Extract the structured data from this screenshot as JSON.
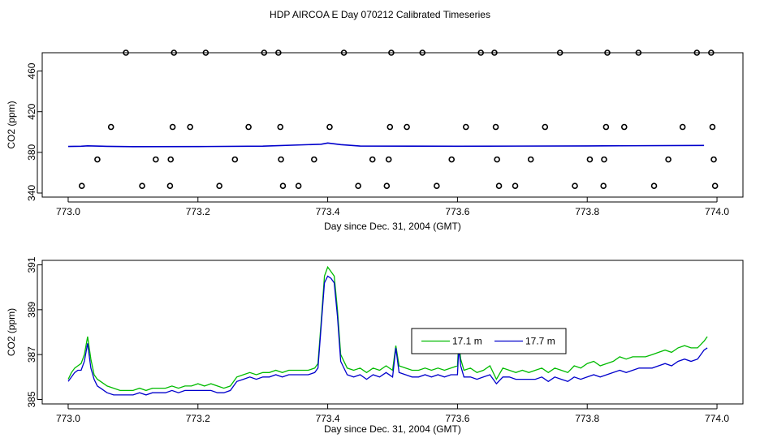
{
  "title": "HDP AIRCOA E  Day 070212  Calibrated Timeseries",
  "chart_data": [
    {
      "type": "scatter",
      "xlabel": "Day since Dec. 31, 2004 (GMT)",
      "ylabel": "CO2 (ppm)",
      "xlim": [
        772.96,
        774.04
      ],
      "ylim": [
        336,
        478
      ],
      "xticks": [
        "773.0",
        "773.2",
        "773.4",
        "773.6",
        "773.8",
        "774.0"
      ],
      "yticks": [
        "340",
        "380",
        "420",
        "460"
      ],
      "xtick_values": [
        773.0,
        773.2,
        773.4,
        773.6,
        773.8,
        774.0
      ],
      "ytick_values": [
        340,
        380,
        420,
        460
      ],
      "points": [
        [
          773.021,
          347
        ],
        [
          773.045,
          373
        ],
        [
          773.066,
          405
        ],
        [
          773.089,
          478
        ],
        [
          773.114,
          347
        ],
        [
          773.135,
          373
        ],
        [
          773.157,
          347
        ],
        [
          773.158,
          373
        ],
        [
          773.161,
          405
        ],
        [
          773.163,
          478
        ],
        [
          773.188,
          405
        ],
        [
          773.212,
          478
        ],
        [
          773.233,
          347
        ],
        [
          773.257,
          373
        ],
        [
          773.278,
          405
        ],
        [
          773.302,
          478
        ],
        [
          773.324,
          478
        ],
        [
          773.327,
          405
        ],
        [
          773.328,
          373
        ],
        [
          773.331,
          347
        ],
        [
          773.355,
          347
        ],
        [
          773.379,
          373
        ],
        [
          773.403,
          405
        ],
        [
          773.425,
          478
        ],
        [
          773.447,
          347
        ],
        [
          773.469,
          373
        ],
        [
          773.491,
          347
        ],
        [
          773.494,
          373
        ],
        [
          773.496,
          405
        ],
        [
          773.498,
          478
        ],
        [
          773.522,
          405
        ],
        [
          773.546,
          478
        ],
        [
          773.568,
          347
        ],
        [
          773.591,
          373
        ],
        [
          773.613,
          405
        ],
        [
          773.636,
          478
        ],
        [
          773.657,
          478
        ],
        [
          773.659,
          405
        ],
        [
          773.661,
          373
        ],
        [
          773.664,
          347
        ],
        [
          773.689,
          347
        ],
        [
          773.713,
          373
        ],
        [
          773.735,
          405
        ],
        [
          773.758,
          478
        ],
        [
          773.781,
          347
        ],
        [
          773.804,
          373
        ],
        [
          773.825,
          347
        ],
        [
          773.826,
          373
        ],
        [
          773.829,
          405
        ],
        [
          773.831,
          478
        ],
        [
          773.857,
          405
        ],
        [
          773.879,
          478
        ],
        [
          773.903,
          347
        ],
        [
          773.925,
          373
        ],
        [
          773.947,
          405
        ],
        [
          773.969,
          478
        ],
        [
          773.991,
          478
        ],
        [
          773.993,
          405
        ],
        [
          773.995,
          373
        ],
        [
          773.997,
          347
        ]
      ],
      "line_series": {
        "color": "#0000cc",
        "x": [
          773.0,
          773.02,
          773.03,
          773.06,
          773.1,
          773.2,
          773.3,
          773.39,
          773.4,
          773.42,
          773.45,
          773.6,
          773.8,
          773.98
        ],
        "y": [
          385.8,
          386.0,
          386.4,
          385.9,
          385.6,
          385.7,
          386.1,
          388.0,
          389.2,
          387.6,
          386.2,
          386.0,
          386.3,
          386.8
        ]
      }
    },
    {
      "type": "line",
      "xlabel": "Day since Dec. 31, 2004 (GMT)",
      "ylabel": "CO2 (ppm)",
      "xlim": [
        772.96,
        774.04
      ],
      "ylim": [
        384.8,
        391.2
      ],
      "xticks": [
        "773.0",
        "773.2",
        "773.4",
        "773.6",
        "773.8",
        "774.0"
      ],
      "yticks": [
        "385",
        "387",
        "389",
        "391"
      ],
      "xtick_values": [
        773.0,
        773.2,
        773.4,
        773.6,
        773.8,
        774.0
      ],
      "ytick_values": [
        385,
        387,
        389,
        391
      ],
      "legend": "center-right",
      "series": [
        {
          "name": "17.1 m",
          "color": "#00bb00",
          "x": [
            773.0,
            773.005,
            773.01,
            773.015,
            773.02,
            773.025,
            773.03,
            773.035,
            773.04,
            773.045,
            773.05,
            773.06,
            773.07,
            773.08,
            773.09,
            773.1,
            773.11,
            773.12,
            773.13,
            773.14,
            773.15,
            773.16,
            773.17,
            773.18,
            773.19,
            773.2,
            773.21,
            773.22,
            773.23,
            773.24,
            773.25,
            773.26,
            773.27,
            773.28,
            773.29,
            773.3,
            773.31,
            773.32,
            773.33,
            773.34,
            773.35,
            773.36,
            773.37,
            773.38,
            773.385,
            773.39,
            773.395,
            773.4,
            773.405,
            773.41,
            773.415,
            773.42,
            773.43,
            773.44,
            773.45,
            773.46,
            773.47,
            773.48,
            773.49,
            773.5,
            773.505,
            773.51,
            773.52,
            773.53,
            773.54,
            773.55,
            773.56,
            773.57,
            773.58,
            773.59,
            773.6,
            773.602,
            773.605,
            773.61,
            773.62,
            773.63,
            773.64,
            773.65,
            773.66,
            773.67,
            773.68,
            773.69,
            773.7,
            773.71,
            773.72,
            773.73,
            773.74,
            773.75,
            773.76,
            773.77,
            773.78,
            773.79,
            773.8,
            773.81,
            773.82,
            773.83,
            773.84,
            773.85,
            773.86,
            773.87,
            773.88,
            773.89,
            773.9,
            773.91,
            773.92,
            773.93,
            773.94,
            773.95,
            773.96,
            773.97,
            773.98,
            773.985
          ],
          "y": [
            385.9,
            386.2,
            386.4,
            386.5,
            386.6,
            387.0,
            387.8,
            386.8,
            386.1,
            385.9,
            385.8,
            385.6,
            385.5,
            385.4,
            385.4,
            385.4,
            385.5,
            385.4,
            385.5,
            385.5,
            385.5,
            385.6,
            385.5,
            385.6,
            385.6,
            385.7,
            385.6,
            385.7,
            385.6,
            385.5,
            385.6,
            386.0,
            386.1,
            386.2,
            386.1,
            386.2,
            386.2,
            386.3,
            386.2,
            386.3,
            386.3,
            386.3,
            386.3,
            386.4,
            386.6,
            388.5,
            390.5,
            390.9,
            390.7,
            390.5,
            389.0,
            387.0,
            386.4,
            386.3,
            386.4,
            386.2,
            386.4,
            386.3,
            386.5,
            386.3,
            387.4,
            386.5,
            386.4,
            386.3,
            386.3,
            386.4,
            386.3,
            386.4,
            386.3,
            386.4,
            386.5,
            387.6,
            386.8,
            386.3,
            386.4,
            386.2,
            386.3,
            386.5,
            385.9,
            386.4,
            386.3,
            386.2,
            386.3,
            386.2,
            386.3,
            386.4,
            386.2,
            386.4,
            386.3,
            386.2,
            386.5,
            386.4,
            386.6,
            386.7,
            386.5,
            386.6,
            386.7,
            386.9,
            386.8,
            386.9,
            386.9,
            386.9,
            387.0,
            387.1,
            387.2,
            387.1,
            387.3,
            387.4,
            387.3,
            387.3,
            387.6,
            387.8
          ]
        },
        {
          "name": "17.7 m",
          "color": "#0000cc",
          "x": [
            773.0,
            773.005,
            773.01,
            773.015,
            773.02,
            773.025,
            773.03,
            773.035,
            773.04,
            773.045,
            773.05,
            773.06,
            773.07,
            773.08,
            773.09,
            773.1,
            773.11,
            773.12,
            773.13,
            773.14,
            773.15,
            773.16,
            773.17,
            773.18,
            773.19,
            773.2,
            773.21,
            773.22,
            773.23,
            773.24,
            773.25,
            773.26,
            773.27,
            773.28,
            773.29,
            773.3,
            773.31,
            773.32,
            773.33,
            773.34,
            773.35,
            773.36,
            773.37,
            773.38,
            773.385,
            773.39,
            773.395,
            773.4,
            773.405,
            773.41,
            773.415,
            773.42,
            773.43,
            773.44,
            773.45,
            773.46,
            773.47,
            773.48,
            773.49,
            773.5,
            773.505,
            773.51,
            773.52,
            773.53,
            773.54,
            773.55,
            773.56,
            773.57,
            773.58,
            773.59,
            773.6,
            773.602,
            773.605,
            773.61,
            773.62,
            773.63,
            773.64,
            773.65,
            773.66,
            773.67,
            773.68,
            773.69,
            773.7,
            773.71,
            773.72,
            773.73,
            773.74,
            773.75,
            773.76,
            773.77,
            773.78,
            773.79,
            773.8,
            773.81,
            773.82,
            773.83,
            773.84,
            773.85,
            773.86,
            773.87,
            773.88,
            773.89,
            773.9,
            773.91,
            773.92,
            773.93,
            773.94,
            773.95,
            773.96,
            773.97,
            773.98,
            773.985
          ],
          "y": [
            385.8,
            386.0,
            386.2,
            386.3,
            386.3,
            386.7,
            387.5,
            386.4,
            385.9,
            385.6,
            385.5,
            385.3,
            385.2,
            385.2,
            385.2,
            385.2,
            385.3,
            385.2,
            385.3,
            385.3,
            385.3,
            385.4,
            385.3,
            385.4,
            385.4,
            385.4,
            385.4,
            385.4,
            385.3,
            385.3,
            385.4,
            385.8,
            385.9,
            386.0,
            385.9,
            386.0,
            386.0,
            386.1,
            386.0,
            386.1,
            386.1,
            386.1,
            386.1,
            386.2,
            386.4,
            388.3,
            390.2,
            390.5,
            390.4,
            390.2,
            388.7,
            386.7,
            386.1,
            386.0,
            386.1,
            385.9,
            386.1,
            386.0,
            386.2,
            386.0,
            387.3,
            386.2,
            386.1,
            386.0,
            386.0,
            386.1,
            386.0,
            386.1,
            386.0,
            386.1,
            386.1,
            387.3,
            386.5,
            386.0,
            386.0,
            385.9,
            386.0,
            386.1,
            385.7,
            386.0,
            386.0,
            385.9,
            385.9,
            385.9,
            385.9,
            386.0,
            385.8,
            386.0,
            385.9,
            385.8,
            386.0,
            385.9,
            386.0,
            386.1,
            386.0,
            386.1,
            386.2,
            386.3,
            386.2,
            386.3,
            386.4,
            386.4,
            386.4,
            386.5,
            386.6,
            386.5,
            386.7,
            386.8,
            386.7,
            386.8,
            387.2,
            387.3
          ]
        }
      ]
    }
  ]
}
